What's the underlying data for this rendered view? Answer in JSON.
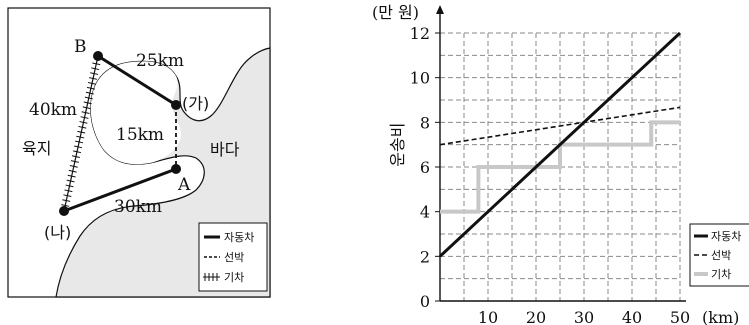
{
  "map": {
    "points": {
      "A": "A",
      "B": "B",
      "ga": "(가)",
      "na": "(나)"
    },
    "distances": {
      "b_ga": "25km",
      "b_na": "40km",
      "ga_a": "15km",
      "a_na": "30km"
    },
    "regions": {
      "land": "육지",
      "sea": "바다"
    },
    "legend": [
      {
        "symbol": "solid",
        "label": "자동차"
      },
      {
        "symbol": "dashed",
        "label": "선박"
      },
      {
        "symbol": "rail",
        "label": "기차"
      }
    ],
    "colors": {
      "sea": "#e8e8e8",
      "route": "#111111"
    }
  },
  "chart_data": {
    "type": "line",
    "ylabel": "운송비",
    "yunit": "(만 원)",
    "xunit": "(km)",
    "xlim": [
      0,
      50
    ],
    "ylim": [
      0,
      12
    ],
    "x_ticks": [
      10,
      20,
      30,
      40,
      50
    ],
    "y_ticks": [
      0,
      2,
      4,
      6,
      8,
      10,
      12
    ],
    "grid": true,
    "legend_position": "bottom-right",
    "series": [
      {
        "name": "자동차",
        "style": "solid",
        "color": "#111111",
        "x": [
          0,
          50
        ],
        "y": [
          2,
          12
        ]
      },
      {
        "name": "선박",
        "style": "dashed",
        "color": "#111111",
        "x": [
          0,
          50
        ],
        "y": [
          7,
          8.67
        ]
      },
      {
        "name": "기차",
        "style": "step",
        "color": "#c8c8c8",
        "x": [
          0,
          8,
          8,
          25,
          25,
          44,
          44,
          50
        ],
        "y": [
          4,
          4,
          6,
          6,
          7,
          7,
          8,
          8
        ]
      }
    ]
  }
}
